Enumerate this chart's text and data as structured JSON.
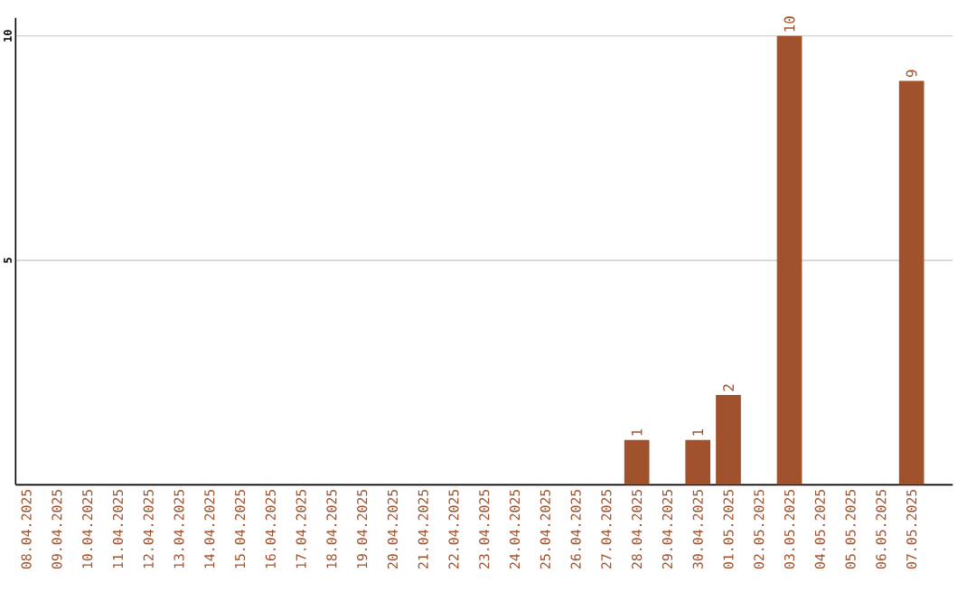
{
  "chart_data": {
    "type": "bar",
    "categories": [
      "08.04.2025",
      "09.04.2025",
      "10.04.2025",
      "11.04.2025",
      "12.04.2025",
      "13.04.2025",
      "14.04.2025",
      "15.04.2025",
      "16.04.2025",
      "17.04.2025",
      "18.04.2025",
      "19.04.2025",
      "20.04.2025",
      "21.04.2025",
      "22.04.2025",
      "23.04.2025",
      "24.04.2025",
      "25.04.2025",
      "26.04.2025",
      "27.04.2025",
      "28.04.2025",
      "29.04.2025",
      "30.04.2025",
      "01.05.2025",
      "02.05.2025",
      "03.05.2025",
      "04.05.2025",
      "05.05.2025",
      "06.05.2025",
      "07.05.2025"
    ],
    "values": [
      0,
      0,
      0,
      0,
      0,
      0,
      0,
      0,
      0,
      0,
      0,
      0,
      0,
      0,
      0,
      0,
      0,
      0,
      0,
      0,
      1,
      0,
      1,
      2,
      0,
      10,
      0,
      0,
      0,
      9
    ],
    "value_labels": [
      null,
      null,
      null,
      null,
      null,
      null,
      null,
      null,
      null,
      null,
      null,
      null,
      null,
      null,
      null,
      null,
      null,
      null,
      null,
      null,
      "1",
      null,
      "1",
      "2",
      null,
      "10",
      null,
      null,
      null,
      "9"
    ],
    "color": "#a0522d",
    "ylim": [
      0,
      10.4
    ],
    "yticks": [
      5,
      10
    ],
    "grid": "y"
  }
}
